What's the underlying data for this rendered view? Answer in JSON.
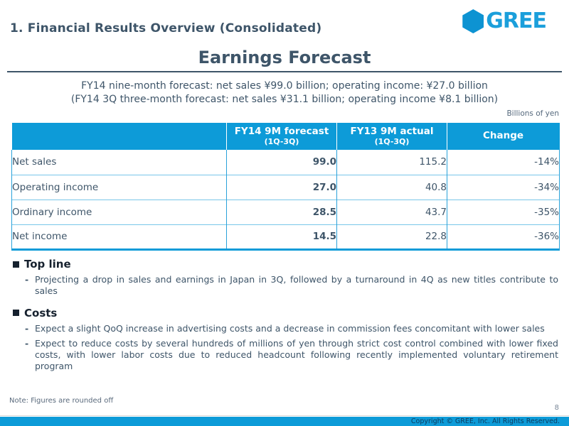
{
  "slide": {
    "header": {
      "title": "1. Financial Results Overview (Consolidated)"
    },
    "logo": {
      "text": "GREE"
    },
    "main_title": "Earnings Forecast",
    "subtitle_line1": "FY14 nine-month forecast: net sales ¥99.0 billion; operating income: ¥27.0 billion",
    "subtitle_line2": "(FY14 3Q three-month forecast: net sales ¥31.1 billion; operating income ¥8.1 billion)",
    "table_unit_note": "Billions of yen",
    "table": {
      "columns": [
        {
          "label": "",
          "sub": ""
        },
        {
          "label": "FY14 9M forecast",
          "sub": "(1Q-3Q)"
        },
        {
          "label": "FY13 9M actual",
          "sub": "(1Q-3Q)"
        },
        {
          "label": "Change",
          "sub": ""
        }
      ],
      "rows": [
        {
          "label": "Net sales",
          "fy14": "99.0",
          "fy13": "115.2",
          "change": "-14%"
        },
        {
          "label": "Operating income",
          "fy14": "27.0",
          "fy13": "40.8",
          "change": "-34%"
        },
        {
          "label": "Ordinary income",
          "fy14": "28.5",
          "fy13": "43.7",
          "change": "-35%"
        },
        {
          "label": "Net income",
          "fy14": "14.5",
          "fy13": "22.8",
          "change": "-36%"
        }
      ]
    },
    "sections": [
      {
        "heading": "Top line",
        "bullets": [
          {
            "marker": "-",
            "text": "Projecting a drop in sales and earnings in Japan in 3Q, followed by a turnaround in 4Q as new titles contribute to sales"
          }
        ]
      },
      {
        "heading": "Costs",
        "bullets": [
          {
            "marker": "-",
            "text": "Expect a slight QoQ increase in advertising costs and a decrease in commission fees concomitant with lower sales"
          },
          {
            "marker": "-",
            "text": "Expect to reduce costs by several hundreds of millions of yen through strict cost control combined with lower fixed costs, with lower labor costs due to reduced headcount following recently implemented voluntary retirement program"
          }
        ]
      }
    ],
    "note": "Note: Figures are rounded off",
    "page_number": "8",
    "footer": {
      "copyright": "Copyright © GREE, Inc. All Rights Reserved."
    }
  },
  "colors": {
    "accent_cyan": "#0d9bd8",
    "dark_slate_text": "#3e5569",
    "heading_dark": "#16212e",
    "forecast_column_bg": "#ececec",
    "logo_blue": "#1b9fdb"
  }
}
